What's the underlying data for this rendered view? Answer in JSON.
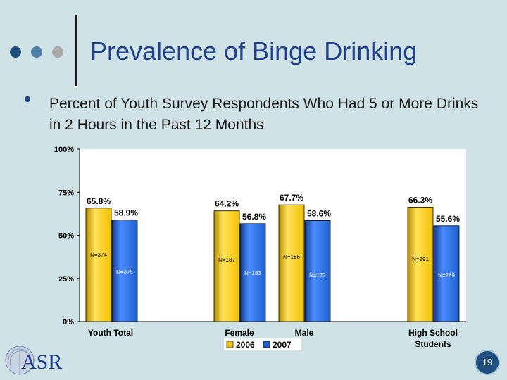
{
  "slide": {
    "title": "Prevalence of Binge Drinking",
    "subtitle": "Percent of Youth Survey Respondents Who Had 5 or More Drinks in 2 Hours in the Past 12 Months",
    "page_number": "19",
    "logo_text": "ASR"
  },
  "colors": {
    "background": "#cfe3e6",
    "title": "#1f3f8f",
    "series_2006": "#f2c100",
    "series_2007": "#1d5fd0",
    "dots": [
      "#1f4e80",
      "#4f7fa8",
      "#a9a9a9"
    ]
  },
  "chart_data": {
    "type": "bar",
    "categories": [
      "Youth Total",
      "Female",
      "Male",
      "High School Students"
    ],
    "ylim": [
      0,
      100
    ],
    "yticks": [
      "0%",
      "25%",
      "50%",
      "75%",
      "100%"
    ],
    "series": [
      {
        "name": "2006",
        "values": [
          65.8,
          64.2,
          67.7,
          66.3
        ],
        "value_labels": [
          "65.8%",
          "64.2%",
          "67.7%",
          "66.3%"
        ],
        "n_labels": [
          "N=374",
          "N=187",
          "N=186",
          "N=291"
        ]
      },
      {
        "name": "2007",
        "values": [
          58.9,
          56.8,
          58.6,
          55.6
        ],
        "value_labels": [
          "58.9%",
          "56.8%",
          "58.6%",
          "55.6%"
        ],
        "n_labels": [
          "N=375",
          "N=183",
          "N=172",
          "N=289"
        ]
      }
    ],
    "legend": "bottom-center",
    "grid": false
  }
}
